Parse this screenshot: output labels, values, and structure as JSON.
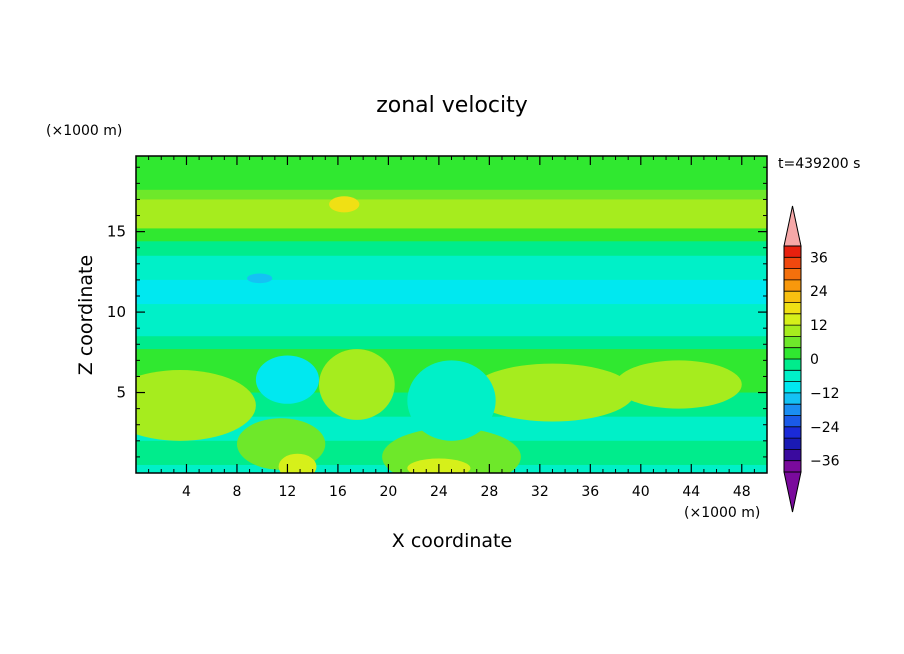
{
  "chart_data": {
    "type": "heatmap",
    "title": "zonal velocity",
    "time_label": "t=439200 s",
    "xlabel": "X coordinate",
    "ylabel": "Z coordinate",
    "x_unit": "(×1000 m)",
    "y_unit": "(×1000 m)",
    "xlim": [
      0,
      50
    ],
    "ylim": [
      0,
      19.7
    ],
    "x_ticks": [
      4,
      8,
      12,
      16,
      20,
      24,
      28,
      32,
      36,
      40,
      44,
      48
    ],
    "y_ticks": [
      5,
      10,
      15
    ],
    "colorbar": {
      "levels": [
        -40,
        -36,
        -32,
        -28,
        -24,
        -20,
        -16,
        -12,
        -8,
        -4,
        0,
        4,
        8,
        12,
        16,
        20,
        24,
        28,
        32,
        36,
        40
      ],
      "tick_labels": [
        36,
        24,
        12,
        0,
        -12,
        -24,
        -36
      ],
      "extend": "both",
      "colors": [
        "#7a0a9c",
        "#3a0a9e",
        "#1a1ab4",
        "#1a2ad8",
        "#1a5ae8",
        "#1a8ef2",
        "#14c2f4",
        "#00e8f0",
        "#00f0c8",
        "#00ec8c",
        "#30e830",
        "#6ee82a",
        "#a6ec1e",
        "#d6f01a",
        "#f0e014",
        "#f8c010",
        "#f8980c",
        "#f4700c",
        "#f0480e",
        "#e8200e",
        "#f6a8a8"
      ]
    },
    "bands": [
      {
        "z": 19.7,
        "u": 0
      },
      {
        "z": 19.0,
        "u": 1
      },
      {
        "z": 18.2,
        "u": 3
      },
      {
        "z": 17.6,
        "u": 6
      },
      {
        "z": 17.0,
        "u": 11
      },
      {
        "z": 16.0,
        "u": 9
      },
      {
        "z": 15.2,
        "u": 3
      },
      {
        "z": 14.4,
        "u": -2
      },
      {
        "z": 13.5,
        "u": -7
      },
      {
        "z": 12.0,
        "u": -10
      },
      {
        "z": 10.5,
        "u": -7
      },
      {
        "z": 9.5,
        "u": -5
      },
      {
        "z": 8.5,
        "u": -4
      },
      {
        "z": 7.7,
        "u": 2
      },
      {
        "z": 6.5,
        "u": 1
      },
      {
        "z": 5.0,
        "u": -4
      },
      {
        "z": 3.5,
        "u": -6
      },
      {
        "z": 2.0,
        "u": -4
      },
      {
        "z": 0.5,
        "u": -6
      },
      {
        "z": 0.0,
        "u": -4
      }
    ],
    "features": [
      {
        "x": 3.5,
        "z": 4.2,
        "rx": 6.0,
        "rz": 2.2,
        "u": 9
      },
      {
        "x": 11.5,
        "z": 1.8,
        "rx": 3.5,
        "rz": 1.6,
        "u": 6
      },
      {
        "x": 12.8,
        "z": 0.4,
        "rx": 1.5,
        "rz": 0.8,
        "u": 14
      },
      {
        "x": 17.5,
        "z": 5.5,
        "rx": 3.0,
        "rz": 2.2,
        "u": 8
      },
      {
        "x": 25.0,
        "z": 1.0,
        "rx": 5.5,
        "rz": 1.8,
        "u": 7
      },
      {
        "x": 24.0,
        "z": 0.3,
        "rx": 2.5,
        "rz": 0.6,
        "u": 14
      },
      {
        "x": 33.0,
        "z": 5.0,
        "rx": 6.5,
        "rz": 1.8,
        "u": 9
      },
      {
        "x": 43.0,
        "z": 5.5,
        "rx": 5.0,
        "rz": 1.5,
        "u": 10
      },
      {
        "x": 25.0,
        "z": 4.5,
        "rx": 3.5,
        "rz": 2.5,
        "u": -8
      },
      {
        "x": 12.0,
        "z": 5.8,
        "rx": 2.5,
        "rz": 1.5,
        "u": -10
      },
      {
        "x": 16.5,
        "z": 16.7,
        "rx": 1.2,
        "rz": 0.5,
        "u": 16
      },
      {
        "x": 9.8,
        "z": 12.1,
        "rx": 1.0,
        "rz": 0.3,
        "u": -16
      }
    ]
  }
}
